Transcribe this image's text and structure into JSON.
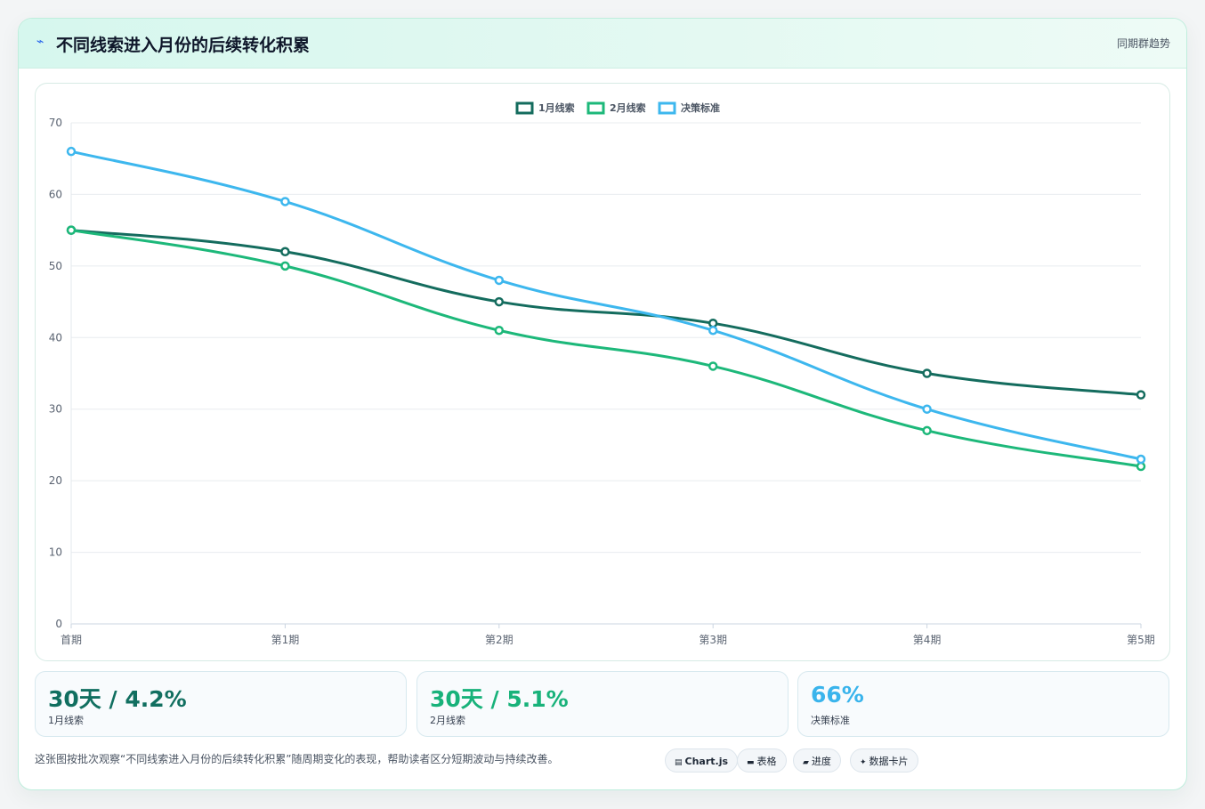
{
  "header": {
    "icon": "lightning-icon",
    "title": "不同线索进入月份的后续转化积累",
    "tag": "同期群趋势"
  },
  "chart_data": {
    "type": "line",
    "categories": [
      "首期",
      "第1期",
      "第2期",
      "第3期",
      "第4期",
      "第5期"
    ],
    "series": [
      {
        "name": "1月线索",
        "color": "#146c5e",
        "values": [
          55,
          52,
          45,
          42,
          35,
          32
        ]
      },
      {
        "name": "2月线索",
        "color": "#1db87a",
        "values": [
          55,
          50,
          41,
          36,
          27,
          22
        ]
      },
      {
        "name": "决策标准",
        "color": "#3db7ee",
        "values": [
          66,
          59,
          48,
          41,
          30,
          23
        ]
      }
    ],
    "ylim": [
      0,
      70
    ],
    "yticks": [
      0,
      10,
      20,
      30,
      40,
      50,
      60,
      70
    ],
    "grid": true,
    "legend": "top-center",
    "smooth": true
  },
  "kpis": [
    {
      "value": "30天 / 4.2%",
      "label": "1月线索",
      "color": "#116f60"
    },
    {
      "value": "30天 / 5.1%",
      "label": "2月线索",
      "color": "#18b27a"
    },
    {
      "value": "66%",
      "label": "决策标准",
      "color": "#3ab4ec"
    }
  ],
  "footer": {
    "note": "这张图按批次观察“不同线索进入月份的后续转化积累”随周期变化的表现，帮助读者区分短期波动与持续改善。",
    "pills": [
      {
        "icon": "chart-icon",
        "glyph": "▤",
        "label": "Chart.js"
      },
      {
        "icon": "table-icon",
        "glyph": "▬",
        "label": "表格"
      },
      {
        "icon": "progress-icon",
        "glyph": "▰",
        "label": "进度"
      },
      {
        "icon": "sparkle-icon",
        "glyph": "✦",
        "label": "数据卡片"
      }
    ]
  }
}
